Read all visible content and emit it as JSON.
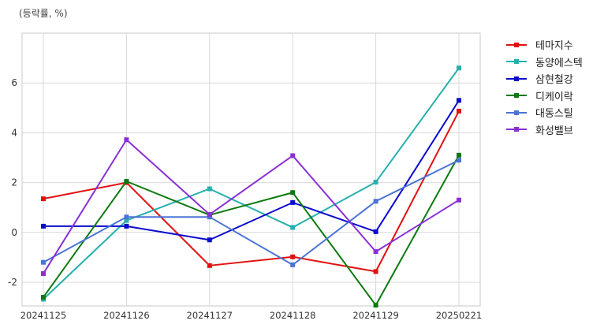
{
  "chart_data": {
    "type": "line",
    "title": "",
    "ylabel": "(등락률, %)",
    "xlabel": "",
    "categories": [
      "20241125",
      "20241126",
      "20241127",
      "20241128",
      "20241129",
      "20250221"
    ],
    "ylim": [
      -2.95,
      8.0
    ],
    "yticks": [
      -2,
      0,
      2,
      4,
      6
    ],
    "grid": true,
    "legend_position": "right",
    "series": [
      {
        "name": "테마지수",
        "color": "#e31010",
        "values": [
          1.35,
          2.0,
          -1.33,
          -0.98,
          -1.57,
          4.87
        ]
      },
      {
        "name": "동양에스텍",
        "color": "#26b0ad",
        "values": [
          -2.68,
          0.48,
          1.75,
          0.2,
          2.02,
          6.6
        ]
      },
      {
        "name": "삼현철강",
        "color": "#0a0acc",
        "values": [
          0.25,
          0.25,
          -0.3,
          1.2,
          0.03,
          5.3
        ]
      },
      {
        "name": "디케이락",
        "color": "#0d7a10",
        "values": [
          -2.6,
          2.05,
          0.7,
          1.6,
          -2.92,
          3.1
        ]
      },
      {
        "name": "대동스틸",
        "color": "#4a74d6",
        "values": [
          -1.2,
          0.62,
          0.62,
          -1.3,
          1.25,
          2.9
        ]
      },
      {
        "name": "화성밸브",
        "color": "#8a2fd6",
        "values": [
          -1.65,
          3.72,
          0.72,
          3.08,
          -0.77,
          1.3
        ]
      }
    ]
  }
}
